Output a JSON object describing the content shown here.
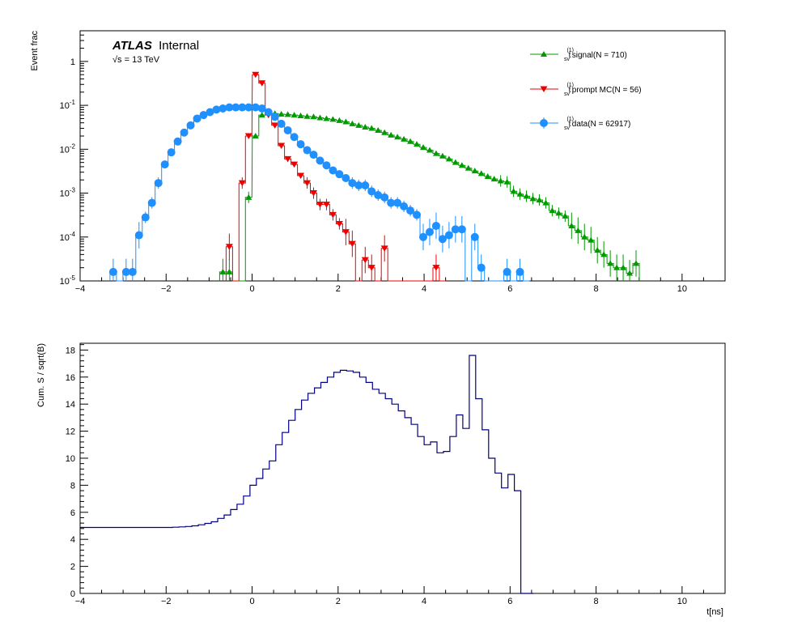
{
  "chart_data": [
    {
      "type": "line",
      "title": "",
      "label": {
        "brand": "ATLAS",
        "status": "Internal",
        "energy": "√s = 13 TeV"
      },
      "ylabel": "Event frac",
      "xlabel": "",
      "xlim": [
        -4,
        11
      ],
      "ylim": [
        1e-05,
        5
      ],
      "yscale": "log",
      "grid": false,
      "legend_position": "top-right",
      "xticks": [
        "−4",
        "−2",
        "0",
        "2",
        "4",
        "6",
        "8",
        "10"
      ],
      "yticks": [
        {
          "base": "10",
          "exp": "-5"
        },
        {
          "base": "10",
          "exp": "-4"
        },
        {
          "base": "10",
          "exp": "-3"
        },
        {
          "base": "10",
          "exp": "-2"
        },
        {
          "base": "10",
          "exp": "-1"
        },
        {
          "base": "1",
          "exp": ""
        }
      ],
      "bin_width": 0.15,
      "series": [
        {
          "name": "t_sv^(1) signal(N = 710)",
          "legend_main": "t",
          "legend_sup": "(1)",
          "legend_sub": "sv",
          "legend_rest": " signal(N = 710)",
          "color": "#009900",
          "marker": "triangle-up",
          "x": [
            -0.68,
            -0.53,
            -0.38,
            -0.23,
            -0.08,
            0.08,
            0.23,
            0.38,
            0.53,
            0.68,
            0.83,
            0.98,
            1.13,
            1.28,
            1.43,
            1.58,
            1.73,
            1.88,
            2.03,
            2.18,
            2.33,
            2.48,
            2.63,
            2.78,
            2.93,
            3.08,
            3.23,
            3.38,
            3.53,
            3.68,
            3.83,
            3.98,
            4.13,
            4.28,
            4.43,
            4.58,
            4.73,
            4.88,
            5.03,
            5.18,
            5.33,
            5.48,
            5.63,
            5.78,
            5.93,
            6.08,
            6.23,
            6.38,
            6.53,
            6.68,
            6.83,
            6.98,
            7.13,
            7.28,
            7.43,
            7.58,
            7.73,
            7.88,
            8.03,
            8.18,
            8.33,
            8.48,
            8.63,
            8.78,
            8.93
          ],
          "y": [
            1.6e-05,
            1.6e-05,
            0,
            0,
            0.0008,
            0.02,
            0.06,
            0.07,
            0.065,
            0.063,
            0.062,
            0.06,
            0.058,
            0.056,
            0.055,
            0.052,
            0.05,
            0.048,
            0.045,
            0.042,
            0.038,
            0.035,
            0.032,
            0.03,
            0.027,
            0.024,
            0.021,
            0.019,
            0.017,
            0.015,
            0.013,
            0.011,
            0.0095,
            0.008,
            0.007,
            0.006,
            0.005,
            0.0043,
            0.0037,
            0.0032,
            0.0028,
            0.0024,
            0.0021,
            0.0019,
            0.0018,
            0.0011,
            0.00095,
            0.00085,
            0.00075,
            0.0007,
            0.0006,
            0.0004,
            0.00035,
            0.0003,
            0.00018,
            0.00014,
            0.0001,
            8.5e-05,
            5e-05,
            4e-05,
            2.5e-05,
            2e-05,
            2e-05,
            1.5e-05,
            2.5e-05
          ]
        },
        {
          "name": "t_sv^(1) prompt MC(N = 56)",
          "legend_main": "t",
          "legend_sup": "(1)",
          "legend_sub": "sv",
          "legend_rest": " prompt MC(N = 56)",
          "color": "#ee0000",
          "marker": "triangle-down",
          "x": [
            -0.53,
            -0.38,
            -0.23,
            -0.08,
            0.08,
            0.23,
            0.38,
            0.53,
            0.68,
            0.83,
            0.98,
            1.13,
            1.28,
            1.43,
            1.58,
            1.73,
            1.88,
            2.03,
            2.18,
            2.33,
            2.48,
            2.63,
            2.78,
            2.93,
            3.08,
            3.23,
            3.38,
            3.53,
            3.68,
            3.83,
            3.98,
            4.13,
            4.28,
            4.43
          ],
          "y": [
            6e-05,
            0,
            0.0017,
            0.02,
            0.5,
            0.32,
            0.06,
            0.035,
            0.012,
            0.006,
            0.0045,
            0.0025,
            0.0017,
            0.001,
            0.00055,
            0.00055,
            0.00032,
            0.0002,
            0.00013,
            7e-05,
            0,
            3e-05,
            2e-05,
            0,
            5.5e-05,
            0,
            0,
            0,
            0,
            0,
            0,
            0,
            2e-05,
            0
          ]
        },
        {
          "name": "t_sv^(1) data(N = 62917)",
          "legend_main": "t",
          "legend_sup": "(1)",
          "legend_sub": "sv",
          "legend_rest": " data(N = 62917)",
          "color": "#1e90ff",
          "marker": "circle",
          "x": [
            -3.23,
            -3.08,
            -2.93,
            -2.78,
            -2.63,
            -2.48,
            -2.33,
            -2.18,
            -2.03,
            -1.88,
            -1.73,
            -1.58,
            -1.43,
            -1.28,
            -1.13,
            -0.98,
            -0.83,
            -0.68,
            -0.53,
            -0.38,
            -0.23,
            -0.08,
            0.08,
            0.23,
            0.38,
            0.53,
            0.68,
            0.83,
            0.98,
            1.13,
            1.28,
            1.43,
            1.58,
            1.73,
            1.88,
            2.03,
            2.18,
            2.33,
            2.48,
            2.63,
            2.78,
            2.93,
            3.08,
            3.23,
            3.38,
            3.53,
            3.68,
            3.83,
            3.98,
            4.13,
            4.28,
            4.43,
            4.58,
            4.73,
            4.88,
            5.03,
            5.18,
            5.33,
            5.48,
            5.63,
            5.78,
            5.93,
            6.08,
            6.23,
            6.38
          ],
          "y": [
            1.6e-05,
            0,
            1.6e-05,
            1.6e-05,
            0.00011,
            0.00028,
            0.0006,
            0.0017,
            0.0045,
            0.0085,
            0.015,
            0.024,
            0.035,
            0.05,
            0.06,
            0.07,
            0.08,
            0.085,
            0.09,
            0.09,
            0.09,
            0.09,
            0.09,
            0.085,
            0.07,
            0.055,
            0.038,
            0.027,
            0.019,
            0.013,
            0.0095,
            0.0075,
            0.0055,
            0.0043,
            0.0033,
            0.0027,
            0.0022,
            0.0017,
            0.0015,
            0.0015,
            0.0011,
            0.0009,
            0.0008,
            0.0006,
            0.0006,
            0.0005,
            0.0004,
            0.00032,
            0.0001,
            0.00013,
            0.00018,
            9e-05,
            0.00011,
            0.00015,
            0.00015,
            0,
            0.0001,
            2e-05,
            0,
            0,
            0,
            1.6e-05,
            0,
            1.6e-05,
            0
          ]
        }
      ]
    },
    {
      "type": "line",
      "title": "",
      "ylabel": "Cum. S / sqrt(B)",
      "xlabel": "t[ns]",
      "xlim": [
        -4,
        11
      ],
      "ylim": [
        0,
        18.5
      ],
      "grid": false,
      "xticks": [
        "−4",
        "−2",
        "0",
        "2",
        "4",
        "6",
        "8",
        "10"
      ],
      "yticks": [
        "0",
        "2",
        "4",
        "6",
        "8",
        "10",
        "12",
        "14",
        "16",
        "18"
      ],
      "bin_width": 0.15,
      "series": [
        {
          "color": "#000080",
          "x_start": -4.0,
          "step_starts": [
            -2.0,
            -1.85,
            -1.7,
            -1.55,
            -1.4,
            -1.25,
            -1.1,
            -0.95,
            -0.8,
            -0.65,
            -0.5,
            -0.35,
            -0.2,
            -0.05,
            0.1,
            0.25,
            0.4,
            0.55,
            0.7,
            0.85,
            1.0,
            1.15,
            1.3,
            1.45,
            1.6,
            1.75,
            1.9,
            2.05,
            2.2,
            2.35,
            2.5,
            2.65,
            2.8,
            2.95,
            3.1,
            3.25,
            3.4,
            3.55,
            3.7,
            3.85,
            4.0,
            4.15,
            4.3,
            4.45,
            4.6,
            4.75,
            4.9,
            5.05,
            5.2,
            5.35,
            5.5,
            5.65,
            5.8,
            5.95,
            6.1,
            6.25,
            6.4
          ],
          "y": [
            4.88,
            4.9,
            4.92,
            4.95,
            5.0,
            5.08,
            5.18,
            5.3,
            5.55,
            5.8,
            6.2,
            6.6,
            7.2,
            8.0,
            8.5,
            9.2,
            9.8,
            11.0,
            11.9,
            12.8,
            13.6,
            14.3,
            14.8,
            15.2,
            15.6,
            16.0,
            16.35,
            16.5,
            16.45,
            16.35,
            16.0,
            15.6,
            15.1,
            14.8,
            14.4,
            14.0,
            13.5,
            13.0,
            12.5,
            11.6,
            11.0,
            11.2,
            10.4,
            10.5,
            11.6,
            13.2,
            12.2,
            17.6,
            14.4,
            12.1,
            10.0,
            8.9,
            7.8,
            8.8,
            7.6,
            0.0,
            0.0
          ]
        }
      ]
    }
  ]
}
